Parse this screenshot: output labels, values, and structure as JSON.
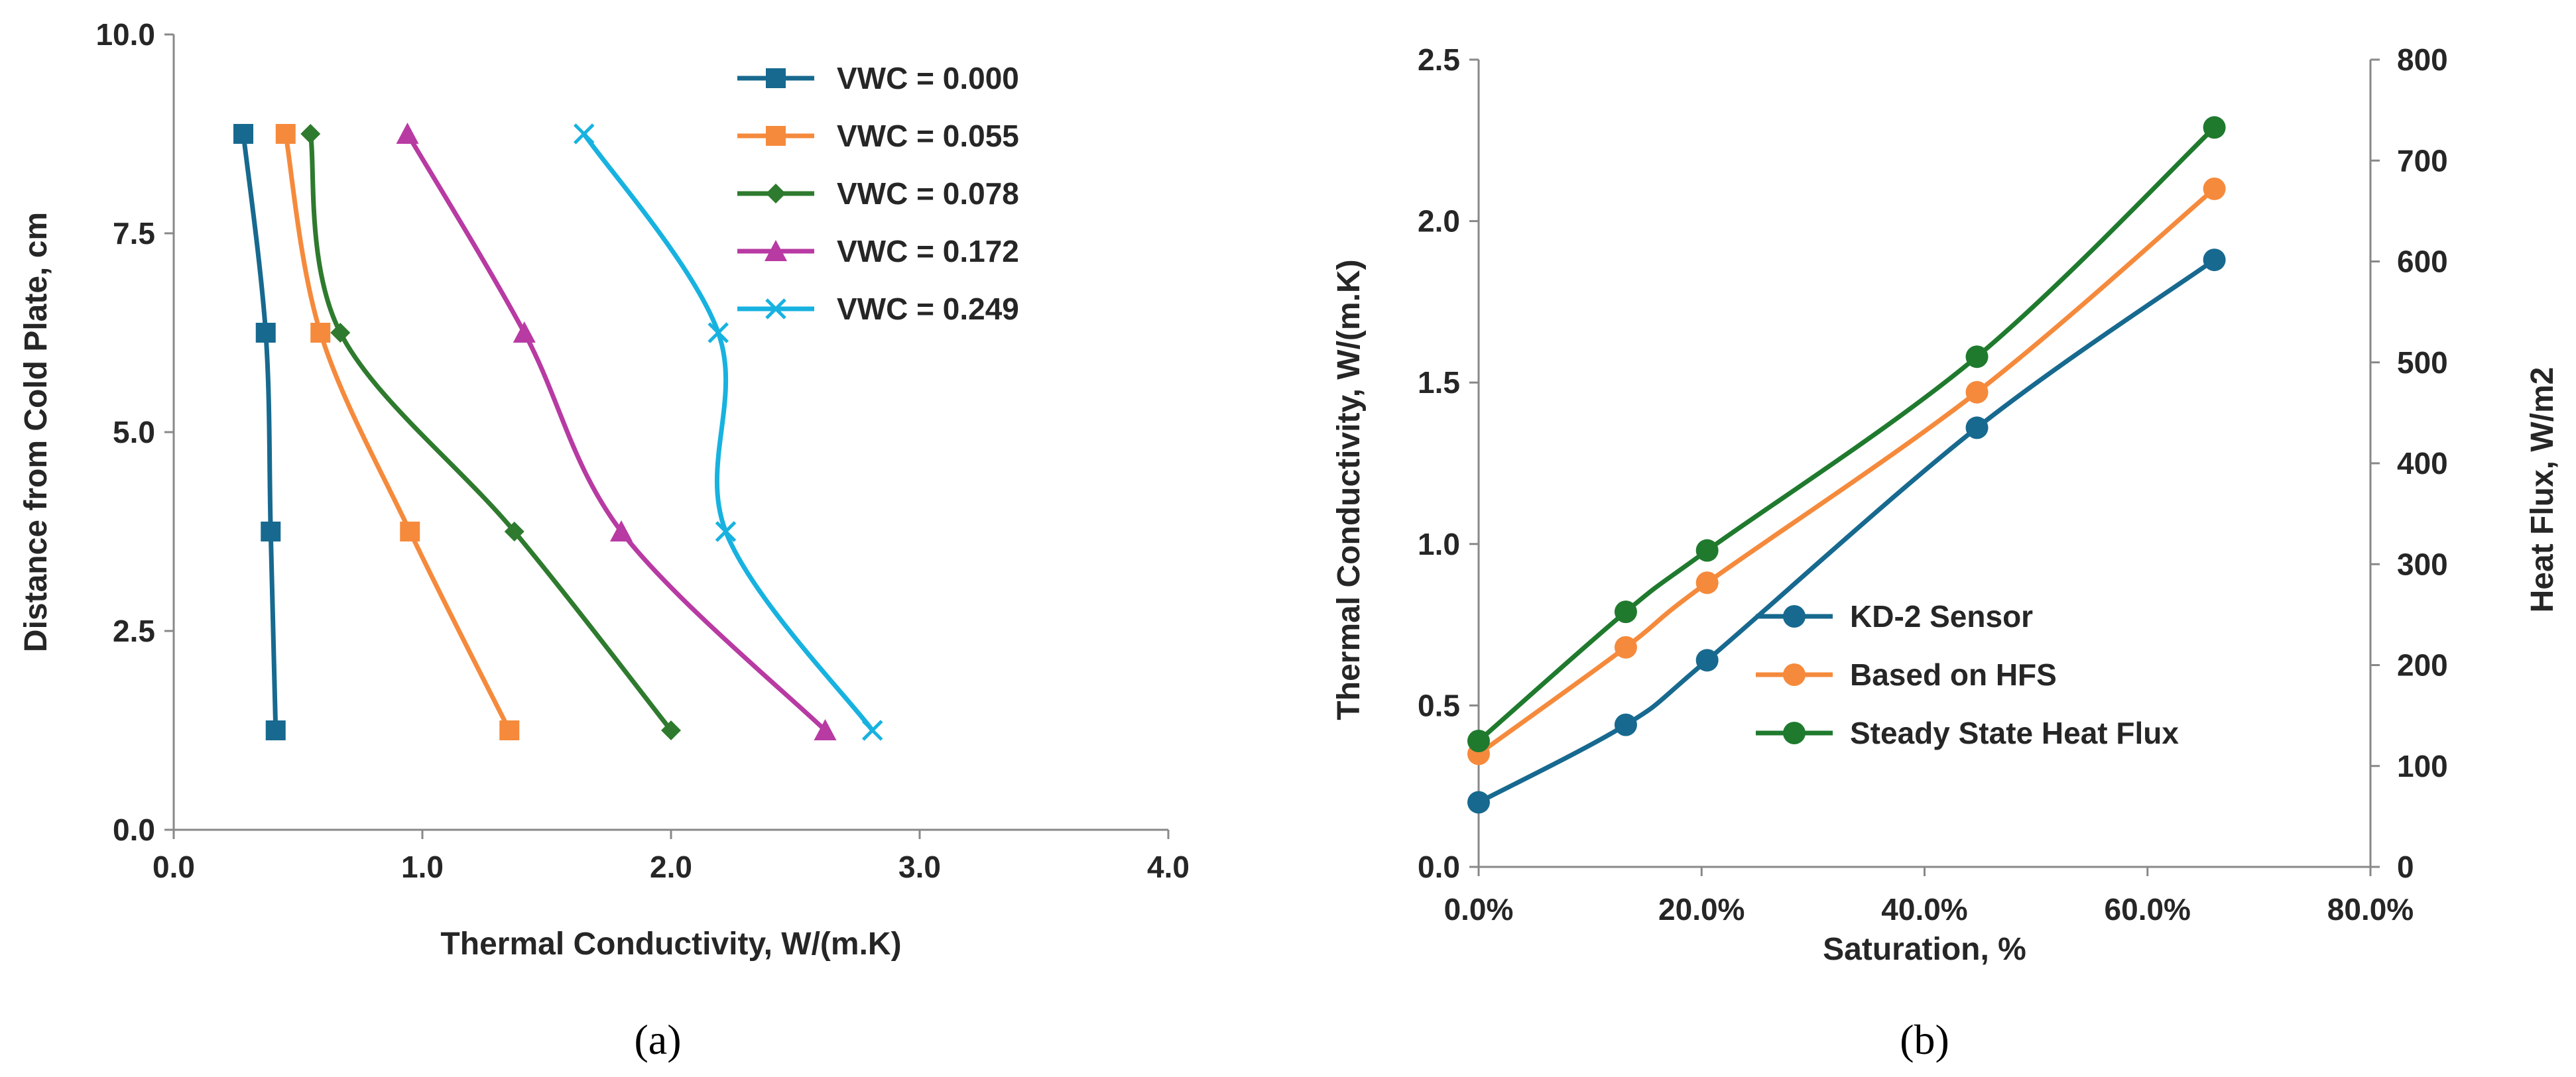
{
  "chart_data": [
    {
      "type": "line",
      "panel_label": "a",
      "xlabel": "Thermal Conductivity, W/(m.K)",
      "ylabel": "Distance from Cold Plate, cm",
      "xlim": [
        0,
        4
      ],
      "ylim": [
        0,
        10
      ],
      "xticks": [
        "0.0",
        "1.0",
        "2.0",
        "3.0",
        "4.0"
      ],
      "yticks": [
        "0.0",
        "2.5",
        "5.0",
        "7.5",
        "10.0"
      ],
      "legend_position": "top-right",
      "series": [
        {
          "name": "VWC = 0.000",
          "color": "#17698f",
          "marker": "square",
          "points": [
            [
              0.41,
              1.25
            ],
            [
              0.39,
              3.75
            ],
            [
              0.37,
              6.25
            ],
            [
              0.28,
              8.75
            ]
          ]
        },
        {
          "name": "VWC = 0.055",
          "color": "#f58a3c",
          "marker": "square",
          "points": [
            [
              1.35,
              1.25
            ],
            [
              0.95,
              3.75
            ],
            [
              0.59,
              6.25
            ],
            [
              0.45,
              8.75
            ]
          ]
        },
        {
          "name": "VWC = 0.078",
          "color": "#2e7a2e",
          "marker": "diamond",
          "points": [
            [
              2.0,
              1.25
            ],
            [
              1.37,
              3.75
            ],
            [
              0.67,
              6.25
            ],
            [
              0.55,
              8.75
            ]
          ]
        },
        {
          "name": "VWC = 0.172",
          "color": "#b83aa3",
          "marker": "triangle",
          "points": [
            [
              2.62,
              1.25
            ],
            [
              1.8,
              3.75
            ],
            [
              1.41,
              6.25
            ],
            [
              0.94,
              8.75
            ]
          ]
        },
        {
          "name": "VWC = 0.249",
          "color": "#17b2e0",
          "marker": "asterisk",
          "points": [
            [
              2.81,
              1.25
            ],
            [
              2.22,
              3.75
            ],
            [
              2.19,
              6.25
            ],
            [
              1.65,
              8.75
            ]
          ]
        }
      ]
    },
    {
      "type": "line",
      "panel_label": "b",
      "xlabel": "Saturation, %",
      "ylabel": "Thermal Conductivity, W/(m.K)",
      "y2label": "Heat Flux, W/m2",
      "xlim": [
        0,
        80
      ],
      "ylim": [
        0,
        2.5
      ],
      "y2lim": [
        0,
        800
      ],
      "xticks": [
        "0.0%",
        "20.0%",
        "40.0%",
        "60.0%",
        "80.0%"
      ],
      "yticks": [
        "0.0",
        "0.5",
        "1.0",
        "1.5",
        "2.0",
        "2.5"
      ],
      "y2ticks": [
        "0",
        "100",
        "200",
        "300",
        "400",
        "500",
        "600",
        "700",
        "800"
      ],
      "legend_position": "lower-middle",
      "series": [
        {
          "name": "KD-2 Sensor",
          "color": "#17698f",
          "marker": "circle",
          "x": [
            0,
            13.2,
            20.5,
            44.7,
            66.0
          ],
          "y": [
            0.2,
            0.44,
            0.64,
            1.36,
            1.88
          ]
        },
        {
          "name": "Based on HFS",
          "color": "#f58a3c",
          "marker": "circle",
          "x": [
            0,
            13.2,
            20.5,
            44.7,
            66.0
          ],
          "y": [
            0.35,
            0.68,
            0.88,
            1.47,
            2.1
          ]
        },
        {
          "name": "Steady State Heat Flux",
          "color": "#1f7a2e",
          "marker": "circle",
          "x": [
            0,
            13.2,
            20.5,
            44.7,
            66.0
          ],
          "y": [
            0.39,
            0.79,
            0.98,
            1.58,
            2.29
          ]
        }
      ]
    }
  ]
}
